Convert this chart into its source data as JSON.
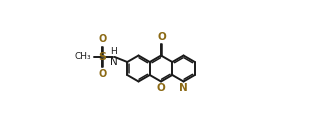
{
  "bg_color": "#ffffff",
  "bond_color": "#1a1a1a",
  "heteroatom_color": "#8B6914",
  "lw": 1.4,
  "lw2": 1.1,
  "fig_w": 3.18,
  "fig_h": 1.37,
  "dpi": 100,
  "s": 0.092,
  "cA": [
    0.355,
    0.5
  ],
  "cB": [
    0.515,
    0.5
  ],
  "cC": [
    0.675,
    0.5
  ]
}
